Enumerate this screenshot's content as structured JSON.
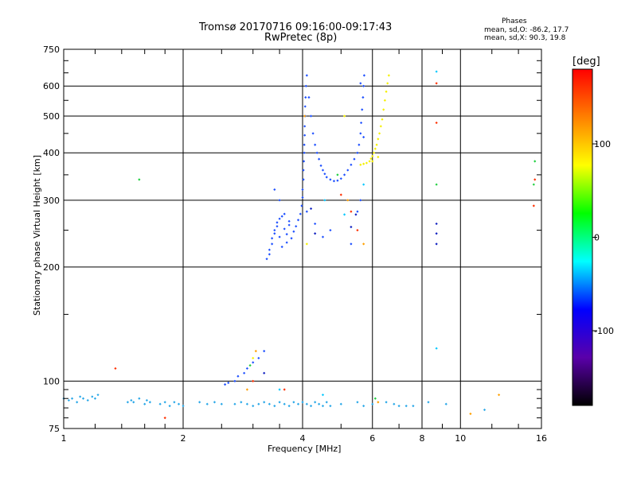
{
  "chart_data": {
    "type": "scatter",
    "title": "Tromsø 20170716 09:16:00-09:17:43",
    "subtitle": "RwPretec (8p)",
    "xlabel": "Frequency [MHz]",
    "ylabel": "Stationary phase Virtual Height [km]",
    "x_scale": "log",
    "y_scale": "log",
    "xlim": [
      1,
      16
    ],
    "ylim": [
      75,
      750
    ],
    "x_ticks": [
      1,
      2,
      4,
      6,
      8,
      10,
      16
    ],
    "y_ticks": [
      75,
      100,
      200,
      300,
      400,
      500,
      600,
      750
    ],
    "grid": true,
    "phases_box": {
      "title": "Phases",
      "o_mode": "mean, sd,O: -86.2, 17.7",
      "x_mode": "mean, sd,X:  90.3, 19.8"
    },
    "colorbar": {
      "label": "[deg]",
      "range": [
        -180,
        180
      ],
      "ticks": [
        100,
        0,
        -100
      ],
      "stops": [
        "#000000",
        "#5a00aa",
        "#0000ff",
        "#00ffff",
        "#00ff00",
        "#ffff00",
        "#ff8000",
        "#ff0000"
      ]
    },
    "series": [
      {
        "mode": "o",
        "color": "#1e50ff",
        "points": [
          [
            3.25,
            210
          ],
          [
            3.3,
            216
          ],
          [
            3.3,
            222
          ],
          [
            3.35,
            230
          ],
          [
            3.35,
            238
          ],
          [
            3.4,
            245
          ],
          [
            3.4,
            250
          ],
          [
            3.45,
            256
          ],
          [
            3.45,
            262
          ],
          [
            3.5,
            268
          ],
          [
            3.5,
            240
          ],
          [
            3.55,
            226
          ],
          [
            3.55,
            272
          ],
          [
            3.6,
            276
          ],
          [
            3.6,
            252
          ],
          [
            3.65,
            232
          ],
          [
            3.65,
            244
          ],
          [
            3.7,
            258
          ],
          [
            3.7,
            264
          ],
          [
            3.75,
            238
          ],
          [
            3.8,
            248
          ],
          [
            3.85,
            256
          ],
          [
            3.9,
            266
          ],
          [
            3.95,
            276
          ],
          [
            3.98,
            290
          ],
          [
            4.0,
            305
          ],
          [
            4.0,
            320
          ],
          [
            4.02,
            340
          ],
          [
            4.02,
            360
          ],
          [
            4.03,
            380
          ],
          [
            4.04,
            400
          ],
          [
            4.04,
            420
          ],
          [
            4.05,
            445
          ],
          [
            4.05,
            470
          ],
          [
            4.06,
            500
          ],
          [
            4.06,
            530
          ],
          [
            4.07,
            560
          ],
          [
            4.08,
            600
          ],
          [
            4.1,
            640
          ],
          [
            4.15,
            560
          ],
          [
            4.2,
            500
          ],
          [
            4.25,
            450
          ],
          [
            4.3,
            420
          ],
          [
            4.35,
            400
          ],
          [
            4.4,
            385
          ],
          [
            4.45,
            370
          ],
          [
            4.5,
            360
          ],
          [
            4.55,
            352
          ],
          [
            4.6,
            345
          ],
          [
            4.7,
            340
          ],
          [
            4.8,
            337
          ],
          [
            4.9,
            338
          ],
          [
            5.0,
            342
          ],
          [
            5.1,
            350
          ],
          [
            5.2,
            360
          ],
          [
            5.3,
            372
          ],
          [
            5.4,
            385
          ],
          [
            5.5,
            400
          ],
          [
            5.55,
            420
          ],
          [
            5.6,
            450
          ],
          [
            5.62,
            480
          ],
          [
            5.65,
            520
          ],
          [
            5.68,
            560
          ],
          [
            5.7,
            600
          ],
          [
            5.72,
            640
          ],
          [
            5.6,
            610
          ],
          [
            3.4,
            320
          ],
          [
            3.5,
            300
          ],
          [
            4.1,
            280
          ],
          [
            4.3,
            260
          ],
          [
            4.5,
            240
          ],
          [
            4.7,
            250
          ],
          [
            5.3,
            230
          ],
          [
            5.5,
            280
          ],
          [
            5.6,
            300
          ],
          [
            3.2,
            120
          ],
          [
            3.1,
            115
          ],
          [
            3.0,
            112
          ],
          [
            2.9,
            108
          ],
          [
            2.85,
            105
          ],
          [
            2.75,
            103
          ],
          [
            2.7,
            100
          ],
          [
            2.6,
            99
          ],
          [
            2.55,
            98
          ],
          [
            5.7,
            440
          ]
        ]
      },
      {
        "mode": "x",
        "color": "#f5f000",
        "points": [
          [
            5.6,
            372
          ],
          [
            5.7,
            374
          ],
          [
            5.8,
            376
          ],
          [
            5.9,
            380
          ],
          [
            5.95,
            386
          ],
          [
            6.0,
            392
          ],
          [
            6.05,
            400
          ],
          [
            6.1,
            410
          ],
          [
            6.15,
            420
          ],
          [
            6.2,
            435
          ],
          [
            6.25,
            450
          ],
          [
            6.3,
            470
          ],
          [
            6.35,
            490
          ],
          [
            6.4,
            520
          ],
          [
            6.45,
            550
          ],
          [
            6.5,
            580
          ],
          [
            6.55,
            610
          ],
          [
            6.6,
            640
          ],
          [
            6.2,
            390
          ],
          [
            6.0,
            380
          ],
          [
            4.1,
            230
          ],
          [
            5.1,
            500
          ],
          [
            3.0,
            115
          ]
        ]
      },
      {
        "mode": "ground",
        "color": "#2aa8e8",
        "points": [
          [
            1.0,
            90
          ],
          [
            1.03,
            89
          ],
          [
            1.05,
            90
          ],
          [
            1.08,
            88
          ],
          [
            1.1,
            91
          ],
          [
            1.12,
            90
          ],
          [
            1.15,
            89
          ],
          [
            1.18,
            91
          ],
          [
            1.2,
            90
          ],
          [
            1.22,
            92
          ],
          [
            1.45,
            88
          ],
          [
            1.48,
            89
          ],
          [
            1.5,
            88
          ],
          [
            1.55,
            90
          ],
          [
            1.6,
            87
          ],
          [
            1.62,
            89
          ],
          [
            1.65,
            88
          ],
          [
            1.75,
            87
          ],
          [
            1.8,
            88
          ],
          [
            1.85,
            86
          ],
          [
            1.9,
            88
          ],
          [
            1.95,
            87
          ],
          [
            2.0,
            86
          ],
          [
            2.2,
            88
          ],
          [
            2.3,
            87
          ],
          [
            2.4,
            88
          ],
          [
            2.5,
            87
          ],
          [
            2.7,
            87
          ],
          [
            2.8,
            88
          ],
          [
            2.9,
            87
          ],
          [
            3.0,
            86
          ],
          [
            3.1,
            87
          ],
          [
            3.2,
            88
          ],
          [
            3.3,
            87
          ],
          [
            3.4,
            86
          ],
          [
            3.5,
            88
          ],
          [
            3.6,
            87
          ],
          [
            3.7,
            86
          ],
          [
            3.8,
            88
          ],
          [
            3.9,
            87
          ],
          [
            4.0,
            88
          ],
          [
            4.1,
            87
          ],
          [
            4.2,
            86
          ],
          [
            4.3,
            88
          ],
          [
            4.4,
            87
          ],
          [
            4.5,
            86
          ],
          [
            4.6,
            88
          ],
          [
            4.7,
            86
          ],
          [
            5.0,
            87
          ],
          [
            5.5,
            88
          ],
          [
            5.7,
            86
          ],
          [
            6.0,
            87
          ],
          [
            6.5,
            88
          ],
          [
            6.8,
            87
          ],
          [
            7.0,
            86
          ],
          [
            7.3,
            86
          ],
          [
            7.6,
            86
          ],
          [
            8.3,
            88
          ],
          [
            9.2,
            87
          ],
          [
            11.5,
            84
          ]
        ]
      },
      {
        "mode": "other",
        "color": "#ff3000",
        "points": [
          [
            1.35,
            108
          ],
          [
            1.8,
            80
          ],
          [
            5.3,
            280
          ],
          [
            5.5,
            250
          ],
          [
            8.7,
            610
          ],
          [
            8.7,
            480
          ],
          [
            15.4,
            340
          ],
          [
            15.3,
            290
          ],
          [
            3.0,
            100
          ],
          [
            3.6,
            95
          ],
          [
            5.0,
            310
          ]
        ]
      },
      {
        "mode": "other",
        "color": "#20d040",
        "points": [
          [
            1.55,
            340
          ],
          [
            8.7,
            330
          ],
          [
            15.4,
            380
          ],
          [
            15.3,
            330
          ],
          [
            2.95,
            110
          ],
          [
            6.1,
            90
          ],
          [
            4.9,
            350
          ]
        ]
      },
      {
        "mode": "other",
        "color": "#00c8ff",
        "points": [
          [
            8.7,
            122
          ],
          [
            8.7,
            655
          ],
          [
            4.55,
            300
          ],
          [
            5.1,
            275
          ],
          [
            5.7,
            330
          ],
          [
            3.5,
            95
          ],
          [
            4.5,
            92
          ]
        ]
      },
      {
        "mode": "other",
        "color": "#1020c0",
        "points": [
          [
            8.7,
            260
          ],
          [
            8.7,
            245
          ],
          [
            8.7,
            230
          ],
          [
            4.3,
            245
          ],
          [
            5.3,
            255
          ],
          [
            3.2,
            105
          ],
          [
            4.2,
            285
          ],
          [
            5.45,
            275
          ]
        ]
      },
      {
        "mode": "other",
        "color": "#ffa000",
        "points": [
          [
            3.05,
            120
          ],
          [
            5.2,
            300
          ],
          [
            5.7,
            230
          ],
          [
            12.5,
            92
          ],
          [
            6.2,
            88
          ],
          [
            10.6,
            82
          ],
          [
            4.05,
            500
          ],
          [
            2.9,
            95
          ]
        ]
      }
    ]
  }
}
